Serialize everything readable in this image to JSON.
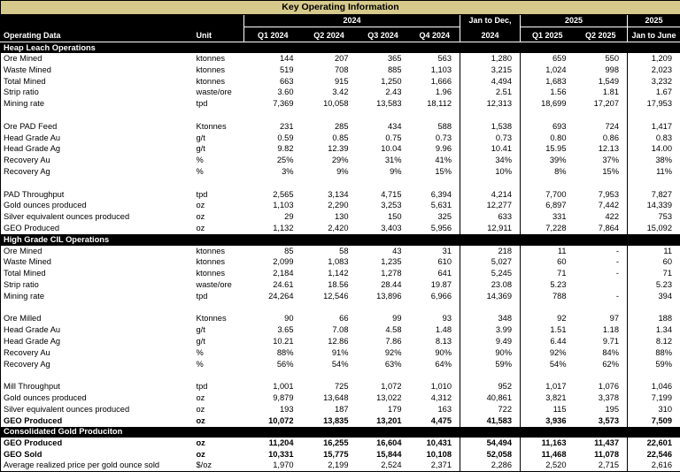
{
  "title": "Key Operating Information",
  "colors": {
    "title_bg": "#d6c98c",
    "header_bg": "#000000",
    "header_fg": "#ffffff",
    "body_bg": "#ffffff",
    "body_fg": "#000000"
  },
  "header": {
    "operating_data": "Operating Data",
    "unit": "Unit",
    "group_2024": "2024",
    "quarters_2024": [
      "Q1 2024",
      "Q2 2024",
      "Q3 2024",
      "Q4 2024"
    ],
    "jan_dec_line1": "Jan to Dec,",
    "jan_dec_line2": "2024",
    "group_2025": "2025",
    "quarters_2025": [
      "Q1 2025",
      "Q2 2025"
    ],
    "h1_line1": "2025",
    "h1_line2": "Jan to June"
  },
  "sections": [
    {
      "name": "Heap Leach Operations",
      "rows": [
        {
          "label": "Ore Mined",
          "unit": "ktonnes",
          "values": [
            "144",
            "207",
            "365",
            "563",
            "1,280",
            "659",
            "550",
            "1,209"
          ]
        },
        {
          "label": "Waste Mined",
          "unit": "ktonnes",
          "values": [
            "519",
            "708",
            "885",
            "1,103",
            "3,215",
            "1,024",
            "998",
            "2,023"
          ]
        },
        {
          "label": "Total Mined",
          "unit": "ktonnes",
          "values": [
            "663",
            "915",
            "1,250",
            "1,666",
            "4,494",
            "1,683",
            "1,549",
            "3,232"
          ]
        },
        {
          "label": "Strip ratio",
          "unit": "waste/ore",
          "values": [
            "3.60",
            "3.42",
            "2.43",
            "1.96",
            "2.51",
            "1.56",
            "1.81",
            "1.67"
          ]
        },
        {
          "label": "Mining rate",
          "unit": "tpd",
          "values": [
            "7,369",
            "10,058",
            "13,583",
            "18,112",
            "12,313",
            "18,699",
            "17,207",
            "17,953"
          ]
        },
        {
          "blank": true
        },
        {
          "label": "Ore PAD Feed",
          "unit": "Ktonnes",
          "values": [
            "231",
            "285",
            "434",
            "588",
            "1,538",
            "693",
            "724",
            "1,417"
          ]
        },
        {
          "label": "Head Grade Au",
          "unit": "g/t",
          "values": [
            "0.59",
            "0.85",
            "0.75",
            "0.73",
            "0.73",
            "0.80",
            "0.86",
            "0.83"
          ]
        },
        {
          "label": "Head Grade Ag",
          "unit": "g/t",
          "values": [
            "9.82",
            "12.39",
            "10.04",
            "9.96",
            "10.41",
            "15.95",
            "12.13",
            "14.00"
          ]
        },
        {
          "label": "Recovery Au",
          "unit": "%",
          "values": [
            "25%",
            "29%",
            "31%",
            "41%",
            "34%",
            "39%",
            "37%",
            "38%"
          ]
        },
        {
          "label": "Recovery Ag",
          "unit": "%",
          "values": [
            "3%",
            "9%",
            "9%",
            "15%",
            "10%",
            "8%",
            "15%",
            "11%"
          ]
        },
        {
          "blank": true
        },
        {
          "label": "PAD Throughput",
          "unit": "tpd",
          "values": [
            "2,565",
            "3,134",
            "4,715",
            "6,394",
            "4,214",
            "7,700",
            "7,953",
            "7,827"
          ]
        },
        {
          "label": "Gold ounces produced",
          "unit": "oz",
          "values": [
            "1,103",
            "2,290",
            "3,253",
            "5,631",
            "12,277",
            "6,897",
            "7,442",
            "14,339"
          ]
        },
        {
          "label": "Silver equivalent ounces produced",
          "unit": "oz",
          "values": [
            "29",
            "130",
            "150",
            "325",
            "633",
            "331",
            "422",
            "753"
          ]
        },
        {
          "label": "GEO Produced",
          "unit": "oz",
          "values": [
            "1,132",
            "2,420",
            "3,403",
            "5,956",
            "12,911",
            "7,228",
            "7,864",
            "15,092"
          ]
        }
      ]
    },
    {
      "name": "High Grade CIL Operations",
      "rows": [
        {
          "label": "Ore Mined",
          "unit": "ktonnes",
          "values": [
            "85",
            "58",
            "43",
            "31",
            "218",
            "11",
            "-",
            "11"
          ]
        },
        {
          "label": "Waste Mined",
          "unit": "ktonnes",
          "values": [
            "2,099",
            "1,083",
            "1,235",
            "610",
            "5,027",
            "60",
            "-",
            "60"
          ]
        },
        {
          "label": "Total Mined",
          "unit": "ktonnes",
          "values": [
            "2,184",
            "1,142",
            "1,278",
            "641",
            "5,245",
            "71",
            "-",
            "71"
          ]
        },
        {
          "label": "Strip ratio",
          "unit": "waste/ore",
          "values": [
            "24.61",
            "18.56",
            "28.44",
            "19.87",
            "23.08",
            "5.23",
            "",
            "5.23"
          ]
        },
        {
          "label": "Mining rate",
          "unit": "tpd",
          "values": [
            "24,264",
            "12,546",
            "13,896",
            "6,966",
            "14,369",
            "788",
            "-",
            "394"
          ]
        },
        {
          "blank": true
        },
        {
          "label": "Ore Milled",
          "unit": "Ktonnes",
          "values": [
            "90",
            "66",
            "99",
            "93",
            "348",
            "92",
            "97",
            "188"
          ]
        },
        {
          "label": "Head Grade Au",
          "unit": "g/t",
          "values": [
            "3.65",
            "7.08",
            "4.58",
            "1.48",
            "3.99",
            "1.51",
            "1.18",
            "1.34"
          ]
        },
        {
          "label": "Head Grade Ag",
          "unit": "g/t",
          "values": [
            "10.21",
            "12.86",
            "7.86",
            "8.13",
            "9.49",
            "6.44",
            "9.71",
            "8.12"
          ]
        },
        {
          "label": "Recovery Au",
          "unit": "%",
          "values": [
            "88%",
            "91%",
            "92%",
            "90%",
            "90%",
            "92%",
            "84%",
            "88%"
          ]
        },
        {
          "label": "Recovery Ag",
          "unit": "%",
          "values": [
            "56%",
            "54%",
            "63%",
            "64%",
            "59%",
            "54%",
            "62%",
            "59%"
          ]
        },
        {
          "blank": true
        },
        {
          "label": "Mill Throughput",
          "unit": "tpd",
          "values": [
            "1,001",
            "725",
            "1,072",
            "1,010",
            "952",
            "1,017",
            "1,076",
            "1,046"
          ]
        },
        {
          "label": "Gold ounces produced",
          "unit": "oz",
          "values": [
            "9,879",
            "13,648",
            "13,022",
            "4,312",
            "40,861",
            "3,821",
            "3,378",
            "7,199"
          ]
        },
        {
          "label": "Silver equivalent ounces produced",
          "unit": "oz",
          "values": [
            "193",
            "187",
            "179",
            "163",
            "722",
            "115",
            "195",
            "310"
          ]
        },
        {
          "label": "GEO Produced",
          "unit": "oz",
          "bold": true,
          "values": [
            "10,072",
            "13,835",
            "13,201",
            "4,475",
            "41,583",
            "3,936",
            "3,573",
            "7,509"
          ]
        }
      ]
    },
    {
      "name": "Consolidated Gold Produciton",
      "rows": [
        {
          "label": "GEO Produced",
          "unit": "oz",
          "bold": true,
          "values": [
            "11,204",
            "16,255",
            "16,604",
            "10,431",
            "54,494",
            "11,163",
            "11,437",
            "22,601"
          ]
        },
        {
          "label": "GEO Sold",
          "unit": "oz",
          "bold": true,
          "values": [
            "10,331",
            "15,775",
            "15,844",
            "10,108",
            "52,058",
            "11,468",
            "11,078",
            "22,546"
          ]
        },
        {
          "label": "Average realized price per gold ounce sold",
          "unit": "$/oz",
          "values": [
            "1,970",
            "2,199",
            "2,524",
            "2,371",
            "2,286",
            "2,520",
            "2,715",
            "2,616"
          ]
        }
      ]
    }
  ]
}
